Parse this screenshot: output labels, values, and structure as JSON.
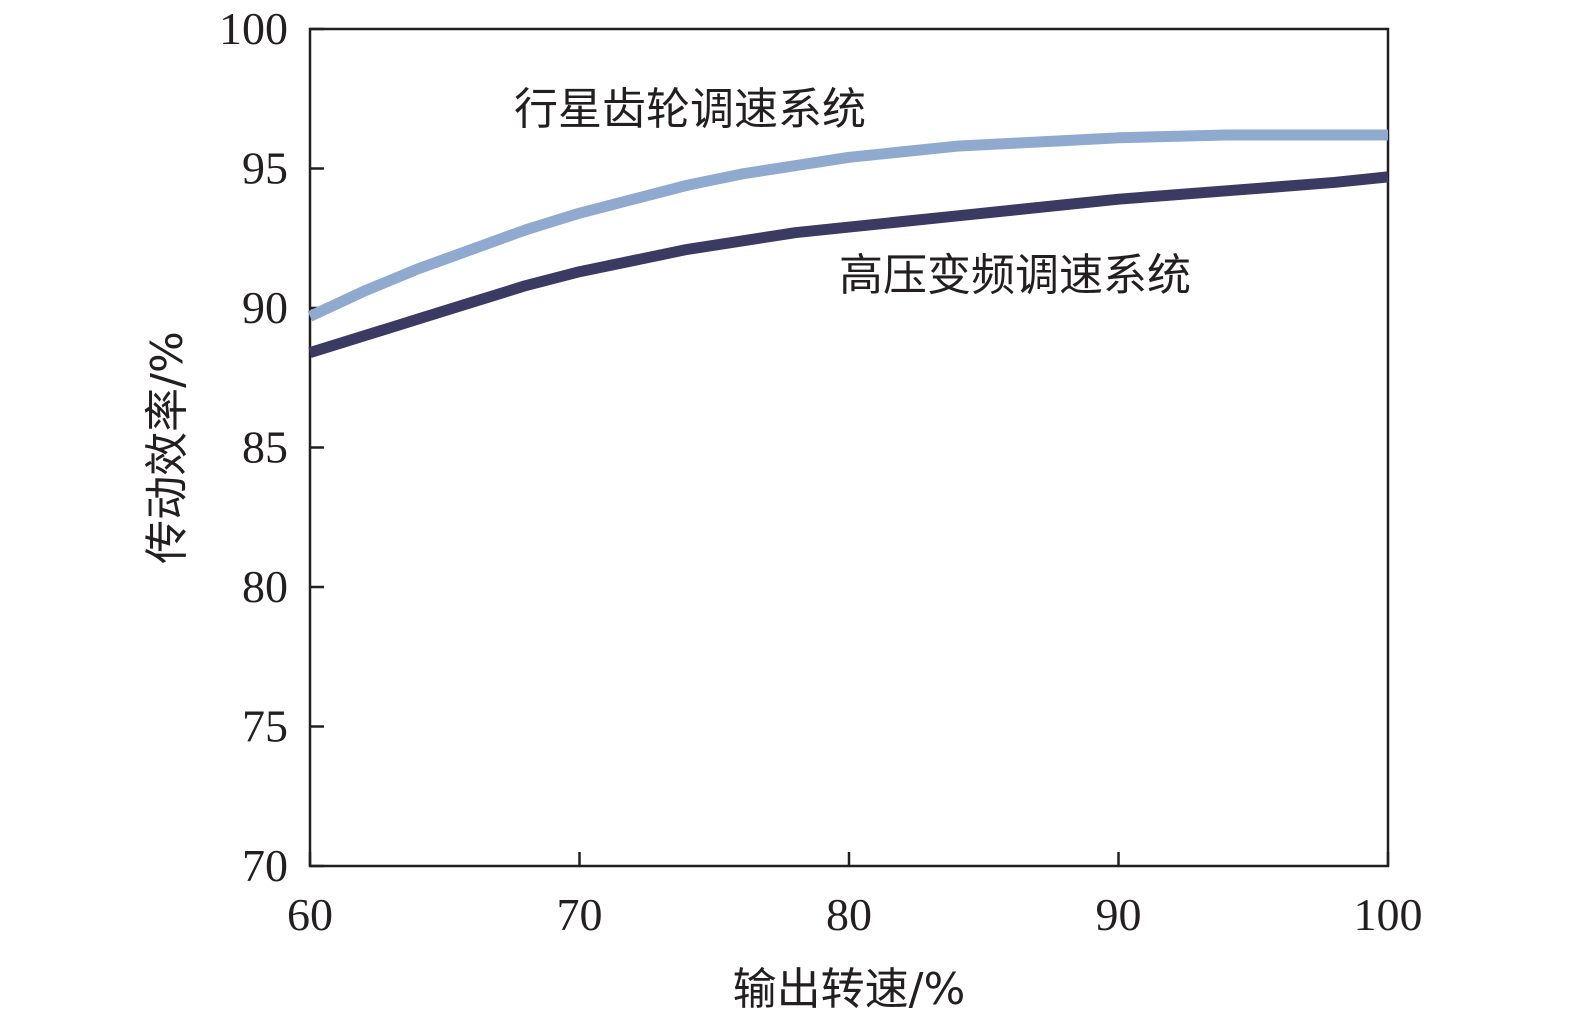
{
  "chart_data": {
    "type": "line",
    "title": "",
    "xlabel": "输出转速/%",
    "ylabel": "传动效率/%",
    "xlim": [
      60,
      100
    ],
    "ylim": [
      70,
      100
    ],
    "xticks": [
      "60",
      "70",
      "80",
      "90",
      "100"
    ],
    "yticks": [
      "70",
      "75",
      "80",
      "85",
      "90",
      "95",
      "100"
    ],
    "grid": false,
    "series": [
      {
        "name": "行星齿轮调速系统",
        "color": "#8fa9cf",
        "x": [
          60,
          62,
          64,
          66,
          68,
          70,
          72,
          74,
          76,
          78,
          80,
          82,
          84,
          86,
          88,
          90,
          92,
          94,
          96,
          98,
          100
        ],
        "y": [
          89.7,
          90.6,
          91.4,
          92.1,
          92.8,
          93.4,
          93.9,
          94.4,
          94.8,
          95.1,
          95.4,
          95.6,
          95.8,
          95.9,
          96.0,
          96.1,
          96.15,
          96.2,
          96.2,
          96.2,
          96.2
        ]
      },
      {
        "name": "高压变频调速系统",
        "color": "#3b3a62",
        "x": [
          60,
          62,
          64,
          66,
          68,
          70,
          72,
          74,
          76,
          78,
          80,
          82,
          84,
          86,
          88,
          90,
          92,
          94,
          96,
          98,
          100
        ],
        "y": [
          88.4,
          89.0,
          89.6,
          90.2,
          90.8,
          91.3,
          91.7,
          92.1,
          92.4,
          92.7,
          92.9,
          93.1,
          93.3,
          93.5,
          93.7,
          93.9,
          94.05,
          94.2,
          94.35,
          94.5,
          94.7
        ]
      }
    ]
  }
}
